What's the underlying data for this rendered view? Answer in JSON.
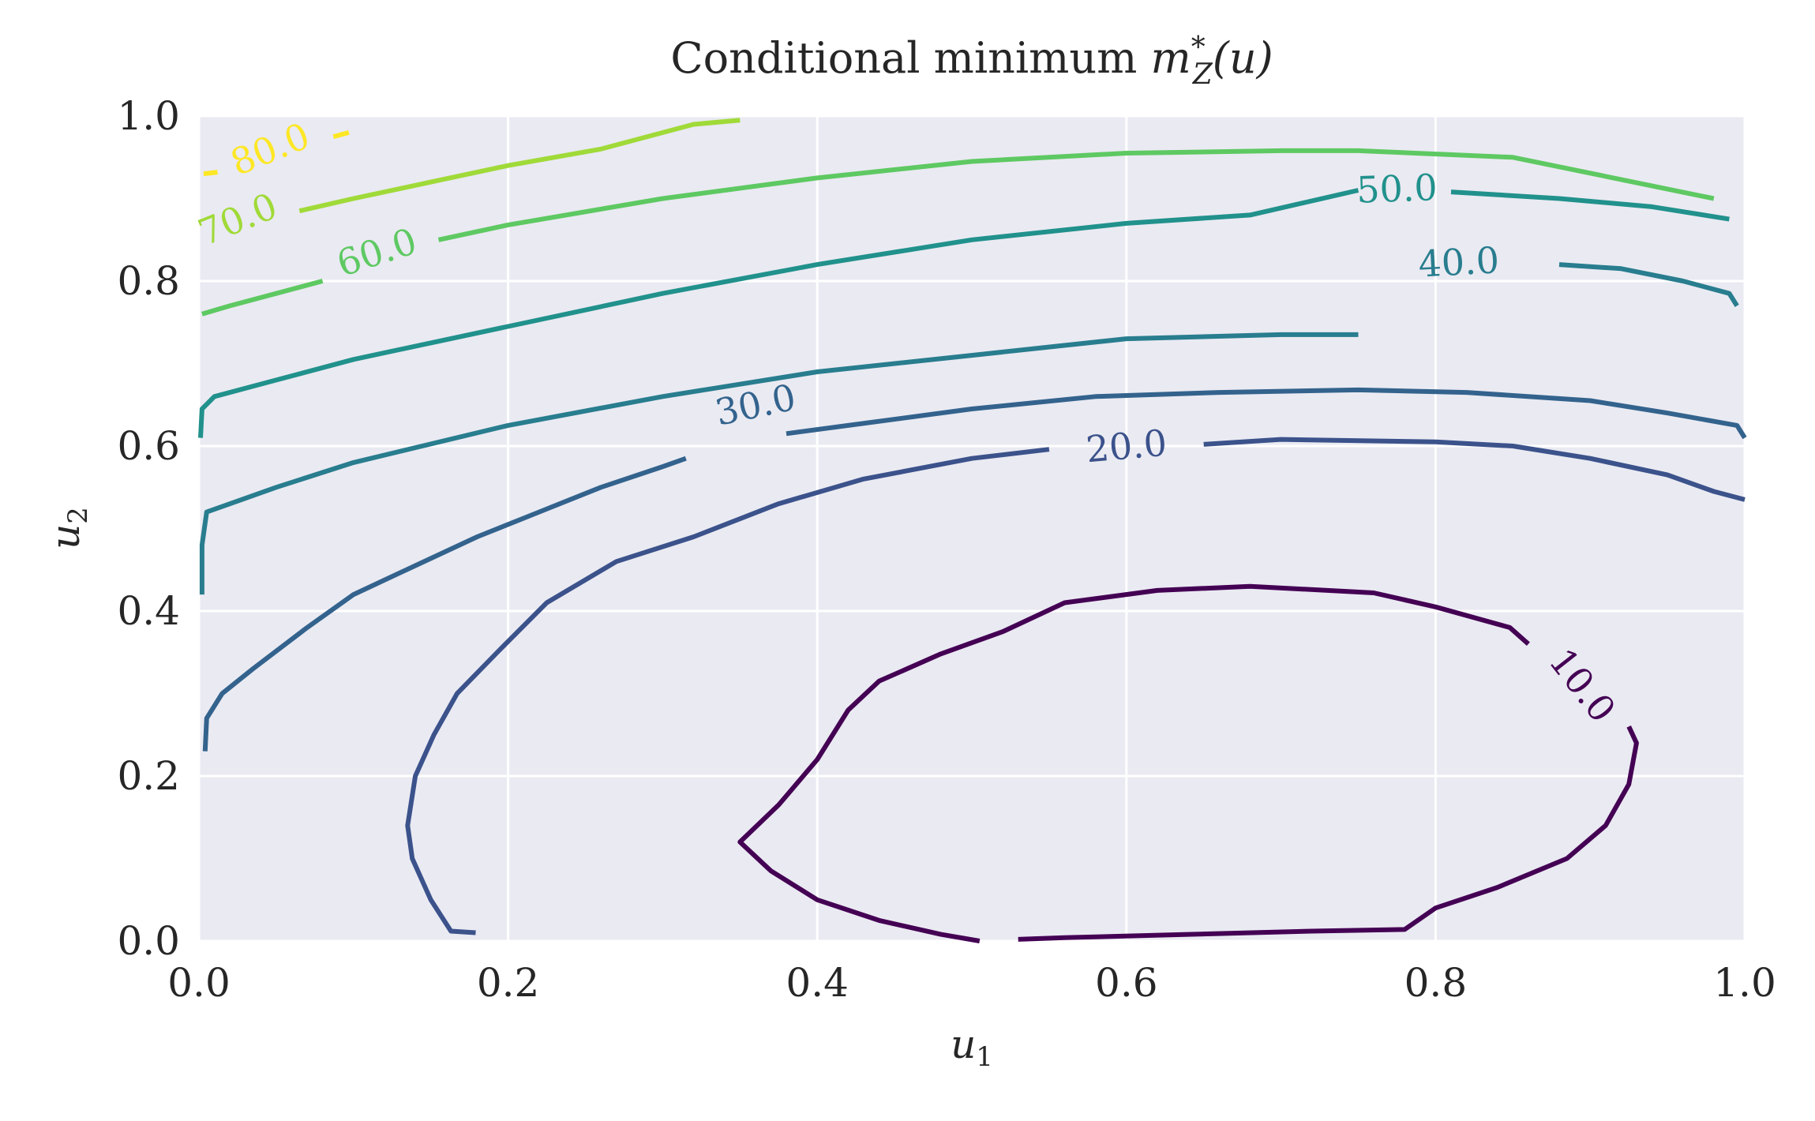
{
  "chart_data": {
    "type": "contour",
    "title": "Conditional minimum m*Z(u)",
    "title_parts": {
      "main": "Conditional minimum ",
      "symbol": "m",
      "sup": "*",
      "sub": "Z",
      "arg": "(u)"
    },
    "xlabel": {
      "base": "u",
      "sub": "1"
    },
    "ylabel": {
      "base": "u",
      "sub": "2"
    },
    "xlim": [
      0,
      1
    ],
    "ylim": [
      0,
      1
    ],
    "xticks": [
      "0.0",
      "0.2",
      "0.4",
      "0.6",
      "0.8",
      "1.0"
    ],
    "yticks": [
      "0.0",
      "0.2",
      "0.4",
      "0.6",
      "0.8",
      "1.0"
    ],
    "grid": true,
    "background": "#eaeaf2",
    "colormap": "viridis",
    "levels": [
      {
        "value": 10,
        "label": "10.0",
        "color": "#440154",
        "label_pos": [
          0.895,
          0.31
        ],
        "label_rot": 52,
        "paths": [
          [
            [
              0.505,
              0.0
            ],
            [
              0.48,
              0.008
            ],
            [
              0.44,
              0.025
            ],
            [
              0.4,
              0.05
            ],
            [
              0.37,
              0.085
            ],
            [
              0.35,
              0.12
            ],
            [
              0.375,
              0.165
            ],
            [
              0.4,
              0.22
            ],
            [
              0.42,
              0.28
            ],
            [
              0.44,
              0.315
            ],
            [
              0.48,
              0.348
            ],
            [
              0.52,
              0.375
            ],
            [
              0.56,
              0.41
            ],
            [
              0.62,
              0.425
            ],
            [
              0.68,
              0.43
            ],
            [
              0.76,
              0.422
            ],
            [
              0.8,
              0.405
            ],
            [
              0.848,
              0.38
            ],
            [
              0.86,
              0.36
            ]
          ],
          [
            [
              0.925,
              0.26
            ],
            [
              0.93,
              0.24
            ],
            [
              0.925,
              0.19
            ],
            [
              0.91,
              0.14
            ],
            [
              0.885,
              0.1
            ],
            [
              0.84,
              0.065
            ],
            [
              0.8,
              0.04
            ],
            [
              0.78,
              0.014
            ],
            [
              0.72,
              0.012
            ],
            [
              0.64,
              0.008
            ],
            [
              0.56,
              0.004
            ],
            [
              0.53,
              0.002
            ]
          ]
        ]
      },
      {
        "value": 20,
        "label": "20.0",
        "color": "#3b528b",
        "label_pos": [
          0.6,
          0.6
        ],
        "label_rot": -5,
        "paths": [
          [
            [
              0.179,
              0.01
            ],
            [
              0.163,
              0.012
            ],
            [
              0.15,
              0.05
            ],
            [
              0.138,
              0.1
            ],
            [
              0.135,
              0.14
            ],
            [
              0.14,
              0.2
            ],
            [
              0.152,
              0.25
            ],
            [
              0.167,
              0.3
            ],
            [
              0.193,
              0.35
            ],
            [
              0.225,
              0.41
            ],
            [
              0.27,
              0.46
            ],
            [
              0.32,
              0.49
            ],
            [
              0.375,
              0.53
            ],
            [
              0.43,
              0.56
            ],
            [
              0.5,
              0.585
            ],
            [
              0.55,
              0.596
            ]
          ],
          [
            [
              0.65,
              0.602
            ],
            [
              0.7,
              0.608
            ],
            [
              0.8,
              0.605
            ],
            [
              0.85,
              0.6
            ],
            [
              0.9,
              0.585
            ],
            [
              0.95,
              0.565
            ],
            [
              0.98,
              0.545
            ],
            [
              1.0,
              0.535
            ]
          ]
        ]
      },
      {
        "value": 30,
        "label": "30.0",
        "color": "#33638d",
        "label_pos": [
          0.36,
          0.65
        ],
        "label_rot": -12,
        "paths": [
          [
            [
              0.004,
              0.23
            ],
            [
              0.005,
              0.27
            ],
            [
              0.015,
              0.3
            ],
            [
              0.035,
              0.33
            ],
            [
              0.07,
              0.38
            ],
            [
              0.1,
              0.42
            ],
            [
              0.14,
              0.455
            ],
            [
              0.18,
              0.49
            ],
            [
              0.22,
              0.52
            ],
            [
              0.26,
              0.55
            ],
            [
              0.3,
              0.575
            ],
            [
              0.315,
              0.585
            ]
          ],
          [
            [
              0.38,
              0.615
            ],
            [
              0.42,
              0.625
            ],
            [
              0.5,
              0.645
            ],
            [
              0.58,
              0.66
            ],
            [
              0.66,
              0.665
            ],
            [
              0.75,
              0.668
            ],
            [
              0.82,
              0.665
            ],
            [
              0.9,
              0.655
            ],
            [
              0.95,
              0.64
            ],
            [
              0.995,
              0.625
            ],
            [
              1.0,
              0.61
            ]
          ]
        ]
      },
      {
        "value": 40,
        "label": "40.0",
        "color": "#287d8e",
        "label_pos": [
          0.815,
          0.823
        ],
        "label_rot": -3,
        "paths": [
          [
            [
              0.002,
              0.42
            ],
            [
              0.002,
              0.48
            ],
            [
              0.005,
              0.52
            ],
            [
              0.05,
              0.55
            ],
            [
              0.1,
              0.58
            ],
            [
              0.2,
              0.625
            ],
            [
              0.3,
              0.66
            ],
            [
              0.4,
              0.69
            ],
            [
              0.5,
              0.71
            ],
            [
              0.6,
              0.73
            ],
            [
              0.7,
              0.735
            ],
            [
              0.75,
              0.735
            ]
          ],
          [
            [
              0.88,
              0.82
            ],
            [
              0.92,
              0.815
            ],
            [
              0.96,
              0.8
            ],
            [
              0.99,
              0.785
            ],
            [
              0.995,
              0.77
            ]
          ]
        ]
      },
      {
        "value": 50,
        "label": "50.0",
        "color": "#21918c",
        "label_pos": [
          0.775,
          0.912
        ],
        "label_rot": -2,
        "paths": [
          [
            [
              0.001,
              0.61
            ],
            [
              0.002,
              0.645
            ],
            [
              0.01,
              0.66
            ],
            [
              0.05,
              0.68
            ],
            [
              0.1,
              0.705
            ],
            [
              0.2,
              0.745
            ],
            [
              0.3,
              0.785
            ],
            [
              0.4,
              0.82
            ],
            [
              0.5,
              0.85
            ],
            [
              0.6,
              0.87
            ],
            [
              0.68,
              0.88
            ],
            [
              0.75,
              0.91
            ]
          ],
          [
            [
              0.81,
              0.908
            ],
            [
              0.88,
              0.9
            ],
            [
              0.94,
              0.89
            ],
            [
              0.99,
              0.875
            ]
          ]
        ]
      },
      {
        "value": 60,
        "label": "60.0",
        "color": "#5ec962",
        "label_pos": [
          0.115,
          0.835
        ],
        "label_rot": -18,
        "paths": [
          [
            [
              0.002,
              0.76
            ],
            [
              0.02,
              0.77
            ],
            [
              0.08,
              0.8
            ],
            [
              0.08,
              0.8
            ]
          ],
          [
            [
              0.155,
              0.85
            ],
            [
              0.2,
              0.868
            ],
            [
              0.3,
              0.9
            ],
            [
              0.4,
              0.925
            ],
            [
              0.5,
              0.945
            ],
            [
              0.6,
              0.955
            ],
            [
              0.7,
              0.958
            ],
            [
              0.75,
              0.958
            ],
            [
              0.85,
              0.95
            ],
            [
              0.98,
              0.9
            ]
          ]
        ]
      },
      {
        "value": 70,
        "label": "70.0",
        "color": "#a0da39",
        "label_pos": [
          0.025,
          0.875
        ],
        "label_rot": -22,
        "paths": [
          [
            [
              0.065,
              0.885
            ],
            [
              0.1,
              0.9
            ],
            [
              0.15,
              0.92
            ],
            [
              0.2,
              0.94
            ],
            [
              0.26,
              0.96
            ],
            [
              0.32,
              0.99
            ],
            [
              0.35,
              0.995
            ]
          ]
        ]
      },
      {
        "value": 80,
        "label": "80.0",
        "color": "#fde725",
        "label_pos": [
          0.046,
          0.96
        ],
        "label_rot": -22,
        "paths": [
          [
            [
              0.003,
              0.93
            ],
            [
              0.012,
              0.932
            ]
          ],
          [
            [
              0.087,
              0.975
            ],
            [
              0.097,
              0.98
            ]
          ]
        ]
      }
    ]
  }
}
